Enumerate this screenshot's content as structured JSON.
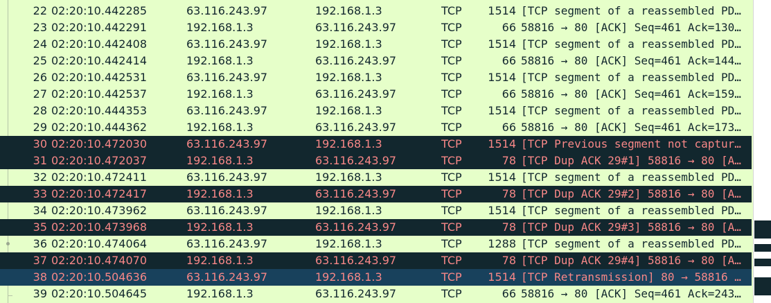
{
  "packets": [
    {
      "no": "22",
      "time": "02:20:10.442285",
      "src": "63.116.243.97",
      "dst": "192.168.1.3",
      "proto": "TCP",
      "len": "1514",
      "info": "[TCP segment of a reassembled PD…",
      "style": "normal"
    },
    {
      "no": "23",
      "time": "02:20:10.442291",
      "src": "192.168.1.3",
      "dst": "63.116.243.97",
      "proto": "TCP",
      "len": "66",
      "info": "58816 → 80 [ACK] Seq=461 Ack=130…",
      "style": "normal"
    },
    {
      "no": "24",
      "time": "02:20:10.442408",
      "src": "63.116.243.97",
      "dst": "192.168.1.3",
      "proto": "TCP",
      "len": "1514",
      "info": "[TCP segment of a reassembled PD…",
      "style": "normal"
    },
    {
      "no": "25",
      "time": "02:20:10.442414",
      "src": "192.168.1.3",
      "dst": "63.116.243.97",
      "proto": "TCP",
      "len": "66",
      "info": "58816 → 80 [ACK] Seq=461 Ack=144…",
      "style": "normal"
    },
    {
      "no": "26",
      "time": "02:20:10.442531",
      "src": "63.116.243.97",
      "dst": "192.168.1.3",
      "proto": "TCP",
      "len": "1514",
      "info": "[TCP segment of a reassembled PD…",
      "style": "normal"
    },
    {
      "no": "27",
      "time": "02:20:10.442537",
      "src": "192.168.1.3",
      "dst": "63.116.243.97",
      "proto": "TCP",
      "len": "66",
      "info": "58816 → 80 [ACK] Seq=461 Ack=159…",
      "style": "normal"
    },
    {
      "no": "28",
      "time": "02:20:10.444353",
      "src": "63.116.243.97",
      "dst": "192.168.1.3",
      "proto": "TCP",
      "len": "1514",
      "info": "[TCP segment of a reassembled PD…",
      "style": "normal"
    },
    {
      "no": "29",
      "time": "02:20:10.444362",
      "src": "192.168.1.3",
      "dst": "63.116.243.97",
      "proto": "TCP",
      "len": "66",
      "info": "58816 → 80 [ACK] Seq=461 Ack=173…",
      "style": "normal"
    },
    {
      "no": "30",
      "time": "02:20:10.472030",
      "src": "63.116.243.97",
      "dst": "192.168.1.3",
      "proto": "TCP",
      "len": "1514",
      "info": "[TCP Previous segment not captur…",
      "style": "bad"
    },
    {
      "no": "31",
      "time": "02:20:10.472037",
      "src": "192.168.1.3",
      "dst": "63.116.243.97",
      "proto": "TCP",
      "len": "78",
      "info": "[TCP Dup ACK 29#1] 58816 → 80 [A…",
      "style": "bad"
    },
    {
      "no": "32",
      "time": "02:20:10.472411",
      "src": "63.116.243.97",
      "dst": "192.168.1.3",
      "proto": "TCP",
      "len": "1514",
      "info": "[TCP segment of a reassembled PD…",
      "style": "normal"
    },
    {
      "no": "33",
      "time": "02:20:10.472417",
      "src": "192.168.1.3",
      "dst": "63.116.243.97",
      "proto": "TCP",
      "len": "78",
      "info": "[TCP Dup ACK 29#2] 58816 → 80 [A…",
      "style": "bad"
    },
    {
      "no": "34",
      "time": "02:20:10.473962",
      "src": "63.116.243.97",
      "dst": "192.168.1.3",
      "proto": "TCP",
      "len": "1514",
      "info": "[TCP segment of a reassembled PD…",
      "style": "normal"
    },
    {
      "no": "35",
      "time": "02:20:10.473968",
      "src": "192.168.1.3",
      "dst": "63.116.243.97",
      "proto": "TCP",
      "len": "78",
      "info": "[TCP Dup ACK 29#3] 58816 → 80 [A…",
      "style": "bad"
    },
    {
      "no": "36",
      "time": "02:20:10.474064",
      "src": "63.116.243.97",
      "dst": "192.168.1.3",
      "proto": "TCP",
      "len": "1288",
      "info": "[TCP segment of a reassembled PD…",
      "style": "normal"
    },
    {
      "no": "37",
      "time": "02:20:10.474070",
      "src": "192.168.1.3",
      "dst": "63.116.243.97",
      "proto": "TCP",
      "len": "78",
      "info": "[TCP Dup ACK 29#4] 58816 → 80 [A…",
      "style": "bad"
    },
    {
      "no": "38",
      "time": "02:20:10.504636",
      "src": "63.116.243.97",
      "dst": "192.168.1.3",
      "proto": "TCP",
      "len": "1514",
      "info": "[TCP Retransmission] 80 → 58816 …",
      "style": "selected"
    },
    {
      "no": "39",
      "time": "02:20:10.504645",
      "src": "192.168.1.3",
      "dst": "63.116.243.97",
      "proto": "TCP",
      "len": "66",
      "info": "58816 → 80 [ACK] Seq=461 Ack=243…",
      "style": "normal"
    }
  ],
  "colors": {
    "normal_bg": "#e6ffc9",
    "normal_fg": "#12272e",
    "bad_bg": "#12272e",
    "bad_fg": "#f78787",
    "selected_bg": "#18415c"
  }
}
